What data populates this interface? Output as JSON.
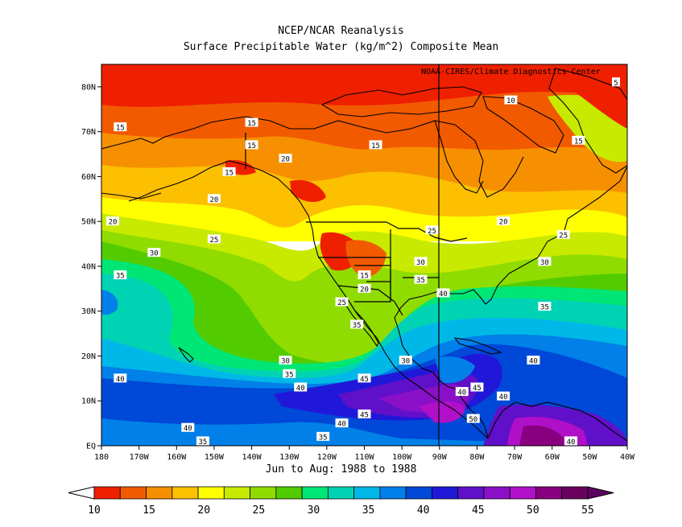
{
  "title_line1": "NCEP/NCAR Reanalysis",
  "title_line2": "Surface Precipitable Water (kg/m^2) Composite Mean",
  "credit": "NOAA-CIRES/Climate Diagnostics Center",
  "subtitle": "Jun to Aug: 1988 to 1988",
  "chart_data": {
    "type": "heatmap",
    "x_ticks": [
      "180",
      "170W",
      "160W",
      "150W",
      "140W",
      "130W",
      "120W",
      "110W",
      "100W",
      "90W",
      "80W",
      "70W",
      "60W",
      "50W",
      "40W"
    ],
    "y_ticks": [
      "80N",
      "70N",
      "60N",
      "50N",
      "40N",
      "30N",
      "20N",
      "10N",
      "EQ"
    ],
    "lon_range": [
      -180,
      -40
    ],
    "lat_range": [
      0,
      85
    ],
    "colorbar": {
      "levels": [
        "10",
        "15",
        "20",
        "25",
        "30",
        "35",
        "40",
        "45",
        "50",
        "55"
      ],
      "colors": [
        "#ee2000",
        "#f25a00",
        "#f79000",
        "#fcc000",
        "#ffff00",
        "#c8ea00",
        "#90dc00",
        "#52cc00",
        "#00e676",
        "#00d2b4",
        "#00b8e8",
        "#0080e8",
        "#0048d8",
        "#2018d8",
        "#6010c8",
        "#8a10c8",
        "#b010c8",
        "#880080",
        "#6a0060"
      ]
    },
    "contour_labels": [
      {
        "text": "5",
        "lon": -43,
        "lat": 81
      },
      {
        "text": "10",
        "lon": -71,
        "lat": 77
      },
      {
        "text": "15",
        "lon": -175,
        "lat": 71
      },
      {
        "text": "15",
        "lon": -140,
        "lat": 72
      },
      {
        "text": "15",
        "lon": -140,
        "lat": 67
      },
      {
        "text": "15",
        "lon": -146,
        "lat": 61
      },
      {
        "text": "15",
        "lon": -107,
        "lat": 67
      },
      {
        "text": "15",
        "lon": -53,
        "lat": 68
      },
      {
        "text": "15",
        "lon": -110,
        "lat": 38
      },
      {
        "text": "20",
        "lon": -131,
        "lat": 64
      },
      {
        "text": "20",
        "lon": -150,
        "lat": 55
      },
      {
        "text": "20",
        "lon": -177,
        "lat": 50
      },
      {
        "text": "20",
        "lon": -73,
        "lat": 50
      },
      {
        "text": "20",
        "lon": -110,
        "lat": 35
      },
      {
        "text": "25",
        "lon": -150,
        "lat": 46
      },
      {
        "text": "25",
        "lon": -92,
        "lat": 48
      },
      {
        "text": "25",
        "lon": -57,
        "lat": 47
      },
      {
        "text": "25",
        "lon": -116,
        "lat": 32
      },
      {
        "text": "30",
        "lon": -166,
        "lat": 43
      },
      {
        "text": "30",
        "lon": -95,
        "lat": 41
      },
      {
        "text": "30",
        "lon": -62,
        "lat": 41
      },
      {
        "text": "30",
        "lon": -131,
        "lat": 19
      },
      {
        "text": "30",
        "lon": -99,
        "lat": 19
      },
      {
        "text": "35",
        "lon": -175,
        "lat": 38
      },
      {
        "text": "35",
        "lon": -95,
        "lat": 37
      },
      {
        "text": "35",
        "lon": -62,
        "lat": 31
      },
      {
        "text": "35",
        "lon": -112,
        "lat": 27
      },
      {
        "text": "35",
        "lon": -130,
        "lat": 16
      },
      {
        "text": "35",
        "lon": -153,
        "lat": 1
      },
      {
        "text": "35",
        "lon": -121,
        "lat": 2
      },
      {
        "text": "40",
        "lon": -89,
        "lat": 34
      },
      {
        "text": "40",
        "lon": -175,
        "lat": 15
      },
      {
        "text": "40",
        "lon": -127,
        "lat": 13
      },
      {
        "text": "40",
        "lon": -65,
        "lat": 19
      },
      {
        "text": "40",
        "lon": -84,
        "lat": 12
      },
      {
        "text": "40",
        "lon": -73,
        "lat": 11
      },
      {
        "text": "40",
        "lon": -157,
        "lat": 4
      },
      {
        "text": "40",
        "lon": -116,
        "lat": 5
      },
      {
        "text": "40",
        "lon": -55,
        "lat": 1
      },
      {
        "text": "45",
        "lon": -110,
        "lat": 15
      },
      {
        "text": "45",
        "lon": -80,
        "lat": 13
      },
      {
        "text": "45",
        "lon": -110,
        "lat": 7
      },
      {
        "text": "50",
        "lon": -81,
        "lat": 6
      }
    ]
  }
}
